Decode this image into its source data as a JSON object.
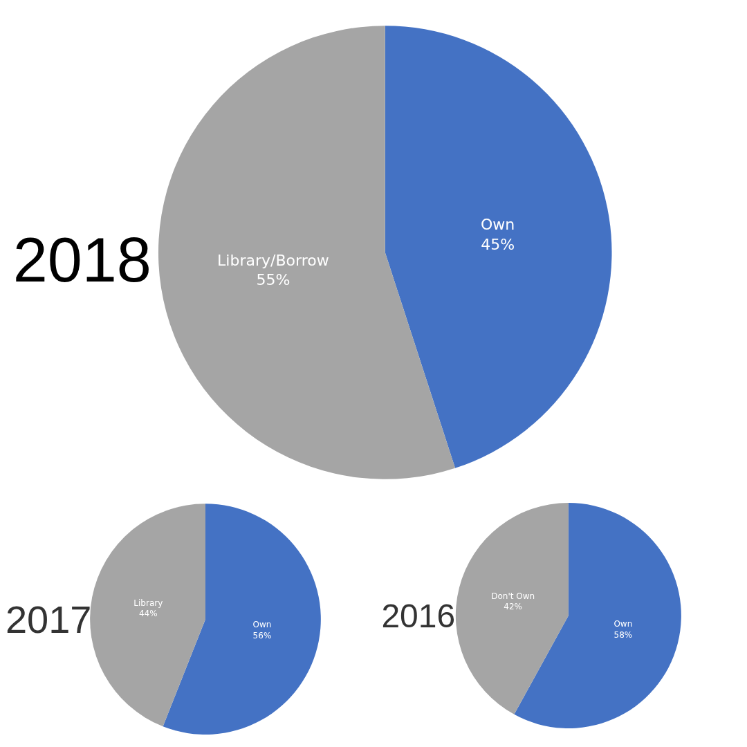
{
  "chart_data": [
    {
      "type": "pie",
      "title": "2018",
      "categories": [
        "Own",
        "Library/Borrow"
      ],
      "values": [
        45,
        55
      ],
      "value_labels": [
        "45%",
        "55%"
      ],
      "colors": [
        "#4472c4",
        "#a5a5a5"
      ]
    },
    {
      "type": "pie",
      "title": "2017",
      "categories": [
        "Own",
        "Library"
      ],
      "values": [
        56,
        44
      ],
      "value_labels": [
        "56%",
        "44%"
      ],
      "colors": [
        "#4472c4",
        "#a5a5a5"
      ]
    },
    {
      "type": "pie",
      "title": "2016",
      "categories": [
        "Own",
        "Don't Own"
      ],
      "values": [
        58,
        42
      ],
      "value_labels": [
        "58%",
        "42%"
      ],
      "colors": [
        "#4472c4",
        "#a5a5a5"
      ]
    }
  ]
}
